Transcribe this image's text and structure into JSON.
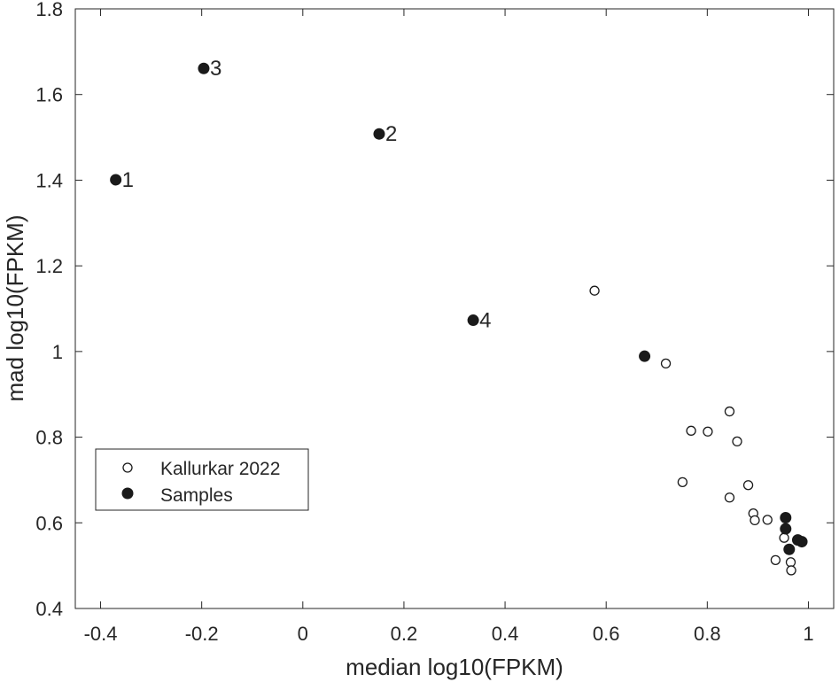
{
  "chart_data": {
    "type": "scatter",
    "xlabel": "median log10(FPKM)",
    "ylabel": "mad log10(FPKM)",
    "xlim": [
      -0.45,
      1.05
    ],
    "ylim": [
      0.4,
      1.8
    ],
    "xticks": [
      -0.4,
      -0.2,
      0,
      0.2,
      0.4,
      0.6,
      0.8,
      1
    ],
    "xtick_labels": [
      "-0.4",
      "-0.2",
      "0",
      "0.2",
      "0.4",
      "0.6",
      "0.8",
      "1"
    ],
    "yticks": [
      0.4,
      0.6,
      0.8,
      1.0,
      1.2,
      1.4,
      1.6,
      1.8
    ],
    "ytick_labels": [
      "0.4",
      "0.6",
      "0.8",
      "1",
      "1.2",
      "1.4",
      "1.6",
      "1.8"
    ],
    "grid": false,
    "legend_position": "lower-left",
    "series": [
      {
        "name": "Kallurkar 2022",
        "marker": "open-circle",
        "color": "#1a1a1a",
        "points": [
          {
            "x": 0.577,
            "y": 1.142
          },
          {
            "x": 0.718,
            "y": 0.972
          },
          {
            "x": 0.844,
            "y": 0.86
          },
          {
            "x": 0.768,
            "y": 0.815
          },
          {
            "x": 0.801,
            "y": 0.813
          },
          {
            "x": 0.859,
            "y": 0.79
          },
          {
            "x": 0.751,
            "y": 0.695
          },
          {
            "x": 0.881,
            "y": 0.688
          },
          {
            "x": 0.844,
            "y": 0.659
          },
          {
            "x": 0.891,
            "y": 0.622
          },
          {
            "x": 0.894,
            "y": 0.606
          },
          {
            "x": 0.919,
            "y": 0.607
          },
          {
            "x": 0.952,
            "y": 0.565
          },
          {
            "x": 0.935,
            "y": 0.513
          },
          {
            "x": 0.965,
            "y": 0.508
          },
          {
            "x": 0.966,
            "y": 0.489
          }
        ]
      },
      {
        "name": "Samples",
        "marker": "filled-circle",
        "color": "#1a1a1a",
        "points": [
          {
            "x": -0.37,
            "y": 1.401,
            "label": "1"
          },
          {
            "x": 0.151,
            "y": 1.508,
            "label": "2"
          },
          {
            "x": -0.196,
            "y": 1.661,
            "label": "3"
          },
          {
            "x": 0.337,
            "y": 1.073,
            "label": "4"
          },
          {
            "x": 0.676,
            "y": 0.989
          },
          {
            "x": 0.955,
            "y": 0.612
          },
          {
            "x": 0.955,
            "y": 0.586
          },
          {
            "x": 0.962,
            "y": 0.538
          },
          {
            "x": 0.979,
            "y": 0.56
          },
          {
            "x": 0.987,
            "y": 0.556
          }
        ]
      }
    ]
  }
}
